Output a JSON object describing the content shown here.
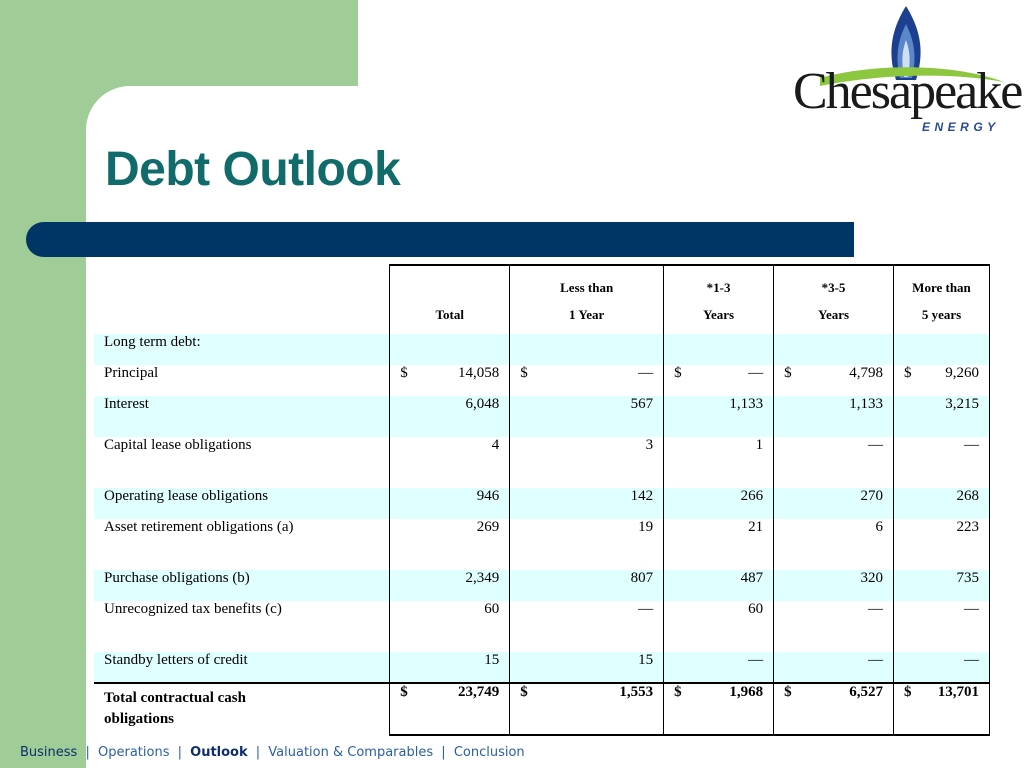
{
  "slide": {
    "title": "Debt Outlook"
  },
  "logo": {
    "name": "Chesapeake",
    "sub": "ENERGY"
  },
  "table": {
    "headers": [
      {
        "line1": "",
        "line2": "Total"
      },
      {
        "line1": "Less than",
        "line2": "1 Year"
      },
      {
        "line1": "*1-3",
        "line2": "Years"
      },
      {
        "line1": "*3-5",
        "line2": "Years"
      },
      {
        "line1": "More than",
        "line2": "5 years"
      }
    ],
    "section_label": "Long term debt:",
    "rows": [
      {
        "label": "Principal",
        "cells": [
          "$",
          "14,058",
          "$",
          "—",
          "$",
          "—",
          "$",
          "4,798",
          "$",
          "9,260"
        ]
      },
      {
        "label": "Interest",
        "values": [
          "6,048",
          "567",
          "1,133",
          "1,133",
          "3,215"
        ]
      },
      {
        "label": "Capital lease obligations",
        "values": [
          "4",
          "3",
          "1",
          "—",
          "—"
        ]
      },
      {
        "label": "Operating lease obligations",
        "values": [
          "946",
          "142",
          "266",
          "270",
          "268"
        ]
      },
      {
        "label": "Asset retirement obligations (a)",
        "values": [
          "269",
          "19",
          "21",
          "6",
          "223"
        ]
      },
      {
        "label": "Purchase obligations (b)",
        "values": [
          "2,349",
          "807",
          "487",
          "320",
          "735"
        ]
      },
      {
        "label": "Unrecognized tax benefits (c)",
        "values": [
          "60",
          "—",
          "60",
          "—",
          "—"
        ]
      },
      {
        "label": "Standby letters of credit",
        "values": [
          "15",
          "15",
          "—",
          "—",
          "—"
        ]
      }
    ],
    "total": {
      "label_line1": "Total contractual cash",
      "label_line2": "obligations",
      "currency": "$",
      "values": [
        "23,749",
        "1,553",
        "1,968",
        "6,527",
        "13,701"
      ]
    }
  },
  "footer": {
    "items": [
      "Business",
      "Operations",
      "Outlook",
      "Valuation & Comparables",
      "Conclusion"
    ],
    "separators": [
      "|",
      "|",
      "|",
      "|"
    ],
    "current": "Outlook"
  }
}
